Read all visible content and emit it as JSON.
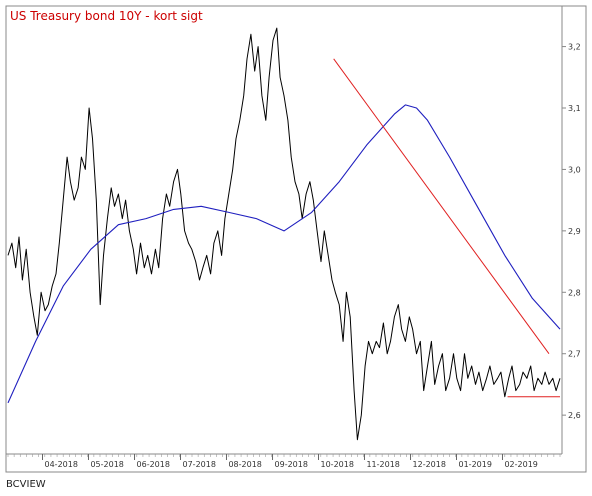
{
  "chart_data": {
    "type": "line",
    "title": "US Treasury bond 10Y - kort sigt",
    "footer": "BCVIEW",
    "ylim": [
      2.54,
      3.24
    ],
    "y_ticks": [
      2.6,
      2.7,
      2.8,
      2.9,
      3.0,
      3.1,
      3.2
    ],
    "y_tick_labels": [
      "2,6",
      "2,7",
      "2,8",
      "2,9",
      "3,0",
      "3,1",
      "3,2"
    ],
    "x_tick_labels": [
      "04-2018",
      "05-2018",
      "06-2018",
      "07-2018",
      "08-2018",
      "09-2018",
      "10-2018",
      "11-2018",
      "12-2018",
      "01-2019",
      "02-2019"
    ],
    "x_ticks": [
      0.0625,
      0.1458,
      0.2292,
      0.3125,
      0.3958,
      0.4792,
      0.5625,
      0.6458,
      0.7292,
      0.8125,
      0.8958
    ],
    "colors": {
      "price": "#000000",
      "moving_average": "#1f1fbf",
      "trendline": "#e02020",
      "title": "#cc0000"
    },
    "series": [
      {
        "role": "price",
        "x": [
          0.0,
          0.007,
          0.014,
          0.02,
          0.026,
          0.033,
          0.04,
          0.047,
          0.053,
          0.06,
          0.067,
          0.073,
          0.08,
          0.087,
          0.093,
          0.1,
          0.107,
          0.113,
          0.12,
          0.127,
          0.133,
          0.14,
          0.147,
          0.153,
          0.16,
          0.167,
          0.173,
          0.18,
          0.187,
          0.193,
          0.2,
          0.207,
          0.213,
          0.22,
          0.227,
          0.233,
          0.24,
          0.247,
          0.253,
          0.26,
          0.267,
          0.273,
          0.28,
          0.287,
          0.293,
          0.3,
          0.307,
          0.313,
          0.32,
          0.327,
          0.333,
          0.34,
          0.347,
          0.353,
          0.36,
          0.367,
          0.373,
          0.38,
          0.387,
          0.393,
          0.4,
          0.407,
          0.413,
          0.42,
          0.427,
          0.433,
          0.44,
          0.447,
          0.453,
          0.46,
          0.467,
          0.473,
          0.48,
          0.487,
          0.493,
          0.5,
          0.507,
          0.513,
          0.52,
          0.527,
          0.533,
          0.54,
          0.547,
          0.553,
          0.56,
          0.567,
          0.573,
          0.58,
          0.587,
          0.593,
          0.6,
          0.607,
          0.613,
          0.62,
          0.627,
          0.633,
          0.64,
          0.647,
          0.653,
          0.66,
          0.667,
          0.673,
          0.68,
          0.687,
          0.693,
          0.7,
          0.707,
          0.713,
          0.72,
          0.727,
          0.733,
          0.74,
          0.747,
          0.753,
          0.76,
          0.767,
          0.773,
          0.78,
          0.787,
          0.793,
          0.8,
          0.807,
          0.813,
          0.82,
          0.827,
          0.833,
          0.84,
          0.847,
          0.853,
          0.86,
          0.867,
          0.873,
          0.88,
          0.887,
          0.893,
          0.9,
          0.907,
          0.913,
          0.92,
          0.927,
          0.933,
          0.94,
          0.947,
          0.953,
          0.96,
          0.967,
          0.973,
          0.98,
          0.987,
          0.993,
          1.0
        ],
        "values": [
          2.86,
          2.88,
          2.84,
          2.89,
          2.82,
          2.87,
          2.8,
          2.76,
          2.73,
          2.8,
          2.77,
          2.78,
          2.81,
          2.83,
          2.88,
          2.95,
          3.02,
          2.98,
          2.95,
          2.97,
          3.02,
          3.0,
          3.1,
          3.05,
          2.95,
          2.78,
          2.86,
          2.92,
          2.97,
          2.94,
          2.96,
          2.92,
          2.95,
          2.9,
          2.87,
          2.83,
          2.88,
          2.84,
          2.86,
          2.83,
          2.87,
          2.84,
          2.92,
          2.96,
          2.94,
          2.98,
          3.0,
          2.96,
          2.9,
          2.88,
          2.87,
          2.85,
          2.82,
          2.84,
          2.86,
          2.83,
          2.88,
          2.9,
          2.86,
          2.92,
          2.96,
          3.0,
          3.05,
          3.08,
          3.12,
          3.18,
          3.22,
          3.16,
          3.2,
          3.12,
          3.08,
          3.15,
          3.21,
          3.23,
          3.15,
          3.12,
          3.08,
          3.02,
          2.98,
          2.96,
          2.92,
          2.96,
          2.98,
          2.95,
          2.9,
          2.85,
          2.9,
          2.86,
          2.82,
          2.8,
          2.78,
          2.72,
          2.8,
          2.76,
          2.64,
          2.56,
          2.6,
          2.68,
          2.72,
          2.7,
          2.72,
          2.71,
          2.75,
          2.7,
          2.72,
          2.76,
          2.78,
          2.74,
          2.72,
          2.76,
          2.74,
          2.7,
          2.72,
          2.64,
          2.68,
          2.72,
          2.65,
          2.68,
          2.7,
          2.64,
          2.66,
          2.7,
          2.66,
          2.64,
          2.7,
          2.66,
          2.68,
          2.65,
          2.67,
          2.64,
          2.66,
          2.68,
          2.65,
          2.66,
          2.67,
          2.63,
          2.66,
          2.68,
          2.64,
          2.65,
          2.67,
          2.66,
          2.68,
          2.64,
          2.66,
          2.65,
          2.67,
          2.65,
          2.66,
          2.64,
          2.66
        ]
      },
      {
        "role": "moving_average",
        "x": [
          0.0,
          0.05,
          0.1,
          0.15,
          0.2,
          0.25,
          0.3,
          0.35,
          0.4,
          0.45,
          0.5,
          0.55,
          0.6,
          0.65,
          0.7,
          0.72,
          0.74,
          0.76,
          0.8,
          0.85,
          0.9,
          0.95,
          1.0
        ],
        "values": [
          2.62,
          2.72,
          2.81,
          2.87,
          2.91,
          2.92,
          2.935,
          2.94,
          2.93,
          2.92,
          2.9,
          2.93,
          2.98,
          3.04,
          3.09,
          3.105,
          3.1,
          3.08,
          3.02,
          2.94,
          2.86,
          2.79,
          2.74
        ]
      }
    ],
    "trendlines": [
      {
        "x": [
          0.59,
          0.98
        ],
        "y": [
          3.18,
          2.7
        ]
      },
      {
        "x": [
          0.905,
          1.0
        ],
        "y": [
          2.63,
          2.63
        ]
      }
    ]
  }
}
